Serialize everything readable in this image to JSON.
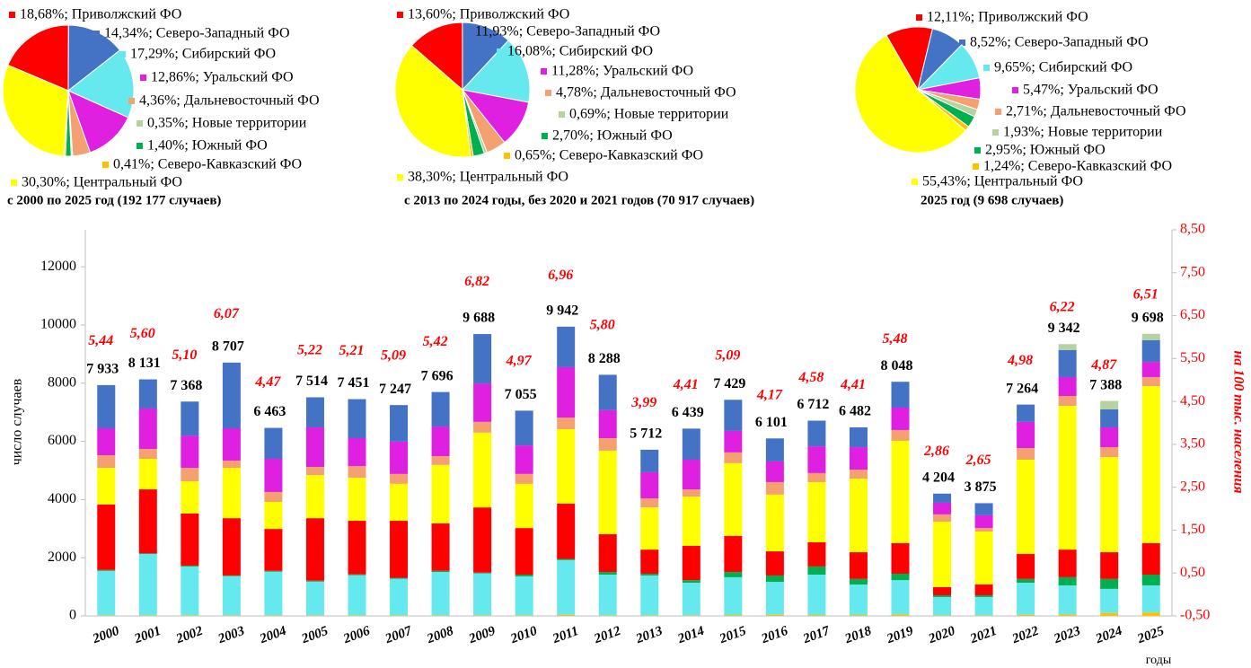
{
  "chart_data": [
    {
      "type": "pie",
      "title": "с 2000 по 2025 год (192 177 случаев)",
      "values": [
        18.68,
        14.34,
        17.29,
        12.86,
        4.36,
        0.35,
        1.4,
        0.41,
        30.3
      ],
      "value_labels": [
        "18,68%; Приволжский ФО",
        "14,34%; Северо-Западный ФО",
        "17,29%; Сибирский ФО",
        "12,86%; Уральский ФО",
        "4,36%; Дальневосточный ФО",
        "0,35%; Новые территории",
        "1,40%; Южный ФО",
        "0,41%; Северо-Кавказский ФО",
        "30,30%; Центральный ФО"
      ],
      "colors": [
        "#ff0000",
        "#4472c4",
        "#66e9ee",
        "#e020e0",
        "#f4a070",
        "#b5d39e",
        "#00b050",
        "#ffc000",
        "#ffff00"
      ]
    },
    {
      "type": "pie",
      "title": "с 2013 по 2024 годы, без 2020 и 2021 годов (70 917 случаев)",
      "values": [
        13.6,
        11.93,
        16.08,
        11.28,
        4.78,
        0.69,
        2.7,
        0.65,
        38.3
      ],
      "value_labels": [
        "13,60%; Приволжский ФО",
        "11,93%; Северо-Западный ФО",
        "16,08%; Сибирский ФО",
        "11,28%; Уральский ФО",
        "4,78%; Дальневосточный ФО",
        "0,69%; Новые территории",
        "2,70%; Южный ФО",
        "0,65%; Северо-Кавказский ФО",
        "38,30%; Центральный ФО"
      ],
      "colors": [
        "#ff0000",
        "#4472c4",
        "#66e9ee",
        "#e020e0",
        "#f4a070",
        "#b5d39e",
        "#00b050",
        "#ffc000",
        "#ffff00"
      ]
    },
    {
      "type": "pie",
      "title": "2025 год (9 698 случаев)",
      "values": [
        12.11,
        8.52,
        9.65,
        5.47,
        2.71,
        1.93,
        2.95,
        1.24,
        55.43
      ],
      "value_labels": [
        "12,11%; Приволжский ФО",
        "8,52%; Северо-Западный ФО",
        "9,65%; Сибирский ФО",
        "5,47%; Уральский ФО",
        "2,71%; Дальневосточный ФО",
        "1,93%; Новые территории",
        "2,95%; Южный ФО",
        "1,24%; Северо-Кавказский ФО",
        "55,43%; Центральный ФО"
      ],
      "colors": [
        "#ff0000",
        "#4472c4",
        "#66e9ee",
        "#e020e0",
        "#f4a070",
        "#b5d39e",
        "#00b050",
        "#ffc000",
        "#ffff00"
      ]
    },
    {
      "type": "bar",
      "stacked": true,
      "ylabel": "число случаев",
      "y2label": "на 100 тыс. населения",
      "xlabel": "годы",
      "categories": [
        "2000",
        "2001",
        "2002",
        "2003",
        "2004",
        "2005",
        "2006",
        "2007",
        "2008",
        "2009",
        "2010",
        "2011",
        "2012",
        "2013",
        "2014",
        "2015",
        "2016",
        "2017",
        "2018",
        "2019",
        "2020",
        "2021",
        "2022",
        "2023",
        "2024",
        "2025"
      ],
      "series": [
        {
          "color": "#ffc000",
          "values": [
            20,
            20,
            20,
            20,
            20,
            20,
            20,
            20,
            20,
            20,
            20,
            40,
            20,
            20,
            20,
            30,
            40,
            30,
            30,
            50,
            20,
            20,
            40,
            50,
            100,
            120
          ]
        },
        {
          "color": "#66e9ee",
          "values": [
            1530,
            2110,
            1680,
            1350,
            1500,
            1160,
            1380,
            1260,
            1490,
            1440,
            1340,
            1880,
            1400,
            1370,
            1120,
            1300,
            1130,
            1390,
            1050,
            1180,
            630,
            630,
            1100,
            1000,
            830,
            930
          ]
        },
        {
          "color": "#00b050",
          "values": [
            30,
            20,
            30,
            20,
            30,
            30,
            30,
            30,
            40,
            30,
            60,
            40,
            90,
            60,
            90,
            180,
            220,
            280,
            190,
            220,
            60,
            60,
            130,
            280,
            340,
            370
          ]
        },
        {
          "color": "#ff0000",
          "values": [
            2250,
            2200,
            1790,
            1970,
            1440,
            2150,
            1840,
            1960,
            1630,
            2240,
            1600,
            1900,
            1300,
            830,
            1180,
            1240,
            830,
            830,
            920,
            1050,
            280,
            370,
            860,
            950,
            920,
            1080
          ]
        },
        {
          "color": "#ffff00",
          "values": [
            1260,
            1050,
            1110,
            1730,
            930,
            1480,
            1480,
            1270,
            2010,
            2570,
            1520,
            2560,
            2870,
            1450,
            1690,
            2500,
            1950,
            2070,
            2530,
            3520,
            2250,
            1820,
            3240,
            4940,
            3270,
            5400
          ]
        },
        {
          "color": "#f4a070",
          "values": [
            430,
            340,
            460,
            250,
            340,
            280,
            400,
            340,
            300,
            370,
            340,
            400,
            430,
            310,
            250,
            370,
            430,
            310,
            310,
            370,
            250,
            120,
            400,
            340,
            340,
            310
          ]
        },
        {
          "color": "#e020e0",
          "values": [
            930,
            1390,
            1110,
            1110,
            1140,
            1360,
            960,
            1110,
            1020,
            1320,
            980,
            1730,
            960,
            900,
            1020,
            740,
            710,
            920,
            770,
            770,
            400,
            440,
            900,
            650,
            680,
            520
          ]
        },
        {
          "color": "#4472c4",
          "values": [
            1483,
            1001,
            1168,
            2257,
            1063,
            1034,
            1341,
            1257,
            1186,
            1698,
            1195,
            1392,
            1218,
            772,
            1069,
            1069,
            791,
            882,
            682,
            888,
            314,
            415,
            594,
            930,
            620,
            750
          ]
        },
        {
          "color": "#b5d39e",
          "values": [
            0,
            0,
            0,
            0,
            0,
            0,
            0,
            0,
            0,
            0,
            0,
            0,
            0,
            0,
            0,
            0,
            0,
            0,
            0,
            0,
            0,
            0,
            0,
            202,
            288,
            218
          ]
        },
        {
          "axis": "y2",
          "color": "#ff0000",
          "values": [
            5.44,
            5.6,
            5.1,
            6.07,
            4.47,
            5.22,
            5.21,
            5.09,
            5.42,
            6.82,
            4.97,
            6.96,
            5.8,
            3.99,
            4.41,
            5.09,
            4.17,
            4.58,
            4.41,
            5.48,
            2.86,
            2.65,
            4.98,
            6.22,
            4.87,
            6.51
          ],
          "value_labels": [
            "5,44",
            "5,60",
            "5,10",
            "6,07",
            "4,47",
            "5,22",
            "5,21",
            "5,09",
            "5,42",
            "6,82",
            "4,97",
            "6,96",
            "5,80",
            "3,99",
            "4,41",
            "5,09",
            "4,17",
            "4,58",
            "4,41",
            "5,48",
            "2,86",
            "2,65",
            "4,98",
            "6,22",
            "4,87",
            "6,51"
          ]
        }
      ],
      "totals": [
        7933,
        8131,
        7368,
        8707,
        6463,
        7514,
        7451,
        7247,
        7696,
        9688,
        7055,
        9942,
        8288,
        5712,
        6439,
        7429,
        6101,
        6712,
        6482,
        8048,
        4204,
        3875,
        7264,
        9342,
        7388,
        9698
      ],
      "total_labels": [
        "7 933",
        "8 131",
        "7 368",
        "8 707",
        "6 463",
        "7 514",
        "7 451",
        "7 247",
        "7 696",
        "9 688",
        "7 055",
        "9 942",
        "8 288",
        "5 712",
        "6 439",
        "7 429",
        "6 101",
        "6 712",
        "6 482",
        "8 048",
        "4 204",
        "3 875",
        "7 264",
        "9 342",
        "7 388",
        "9 698"
      ],
      "ylim": [
        0,
        13270
      ],
      "yticks": [
        0,
        2000,
        4000,
        6000,
        8000,
        10000,
        12000
      ],
      "y2lim": [
        -0.5,
        8.5
      ],
      "y2ticks": [
        {
          "value": -0.5,
          "label": "-0,50"
        },
        {
          "value": 0.5,
          "label": "0,50"
        },
        {
          "value": 1.5,
          "label": "1,50"
        },
        {
          "value": 2.5,
          "label": "2,50"
        },
        {
          "value": 3.5,
          "label": "3,50"
        },
        {
          "value": 4.5,
          "label": "4,50"
        },
        {
          "value": 5.5,
          "label": "5,50"
        },
        {
          "value": 6.5,
          "label": "6,50"
        },
        {
          "value": 7.5,
          "label": "7,50"
        },
        {
          "value": 8.5,
          "label": "8,50"
        }
      ]
    }
  ]
}
